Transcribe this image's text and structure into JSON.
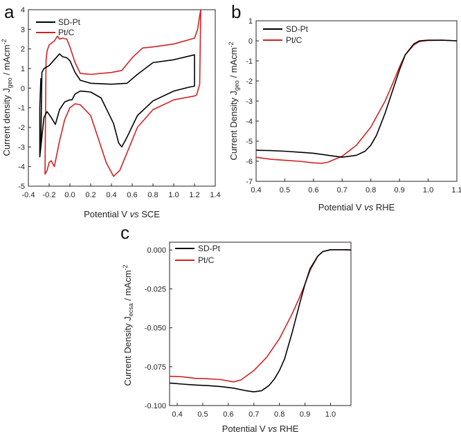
{
  "chart_data": [
    {
      "id": "a",
      "type": "line",
      "panel_label": "a",
      "xlabel_parts": [
        "Potential V ",
        "vs",
        " SCE"
      ],
      "ylabel_parts": [
        "Current density J",
        "geo",
        " / mAcm",
        "-2"
      ],
      "xlim": [
        -0.4,
        1.4
      ],
      "ylim": [
        -5,
        4
      ],
      "xticks": [
        -0.4,
        -0.2,
        0.0,
        0.2,
        0.4,
        0.6,
        0.8,
        1.0,
        1.2,
        1.4
      ],
      "xtick_labels": [
        "-0.4",
        "-0.2",
        "0.0",
        "0.2",
        "0.4",
        "0.6",
        "0.8",
        "1.0",
        "1.2",
        "1.4"
      ],
      "yticks": [
        -5,
        -4,
        -3,
        -2,
        -1,
        0,
        1,
        2,
        3,
        4
      ],
      "ytick_labels": [
        "-5",
        "-4",
        "-3",
        "-2",
        "-1",
        "0",
        "1",
        "2",
        "3",
        "4"
      ],
      "legend": "top-left",
      "series": [
        {
          "name": "SD-Pt",
          "color": "#000000",
          "x": [
            -0.28,
            -0.27,
            -0.25,
            -0.2,
            -0.15,
            -0.1,
            -0.07,
            -0.03,
            0.0,
            0.05,
            0.1,
            0.2,
            0.4,
            0.55,
            0.65,
            0.8,
            1.0,
            1.2,
            1.2,
            1.15,
            1.0,
            0.8,
            0.65,
            0.55,
            0.5,
            0.47,
            0.42,
            0.3,
            0.2,
            0.1,
            0.05,
            0.02,
            0.0,
            -0.05,
            -0.1,
            -0.14,
            -0.18,
            -0.22,
            -0.25,
            -0.27,
            -0.29,
            -0.29,
            -0.28
          ],
          "y": [
            -3.0,
            0.8,
            1.0,
            1.15,
            1.45,
            1.75,
            1.6,
            1.55,
            1.4,
            0.8,
            0.4,
            0.25,
            0.2,
            0.25,
            0.7,
            1.3,
            1.45,
            1.7,
            0.1,
            0.05,
            -0.15,
            -0.65,
            -1.4,
            -2.5,
            -3.0,
            -2.8,
            -1.8,
            -0.5,
            -0.2,
            -0.15,
            -0.3,
            -0.6,
            -0.6,
            -0.7,
            -1.1,
            -1.85,
            -1.5,
            -1.2,
            -1.5,
            -2.5,
            -3.5,
            -1.0,
            0.5
          ]
        },
        {
          "name": "Pt/C",
          "color": "#d42020",
          "x": [
            -0.24,
            -0.23,
            -0.22,
            -0.2,
            -0.15,
            -0.12,
            -0.1,
            -0.07,
            -0.03,
            0.0,
            0.05,
            0.1,
            0.2,
            0.4,
            0.5,
            0.6,
            0.7,
            0.8,
            1.0,
            1.2,
            1.23,
            1.25,
            1.26,
            1.25,
            1.22,
            1.2,
            1.0,
            0.8,
            0.65,
            0.55,
            0.48,
            0.42,
            0.35,
            0.2,
            0.1,
            0.05,
            0.0,
            -0.05,
            -0.1,
            -0.15,
            -0.18,
            -0.2,
            -0.22,
            -0.24,
            -0.24
          ],
          "y": [
            -4.4,
            1.4,
            1.9,
            2.2,
            2.4,
            2.65,
            2.5,
            2.55,
            2.5,
            2.1,
            1.3,
            0.75,
            0.7,
            0.8,
            0.9,
            1.55,
            2.05,
            2.1,
            2.25,
            2.55,
            3.0,
            3.7,
            4.0,
            0.2,
            -0.35,
            -0.4,
            -0.6,
            -1.1,
            -2.0,
            -3.3,
            -4.2,
            -4.5,
            -3.8,
            -1.4,
            -0.85,
            -0.8,
            -1.0,
            -1.6,
            -2.7,
            -4.0,
            -3.7,
            -3.8,
            -4.2,
            -4.4,
            -4.4
          ]
        }
      ]
    },
    {
      "id": "b",
      "type": "line",
      "panel_label": "b",
      "xlabel_parts": [
        "Potential V ",
        "vs",
        " RHE"
      ],
      "ylabel_parts": [
        "Current Density J",
        "geo",
        " / mAcm",
        "-2"
      ],
      "xlim": [
        0.4,
        1.1
      ],
      "ylim": [
        -7,
        1
      ],
      "xticks": [
        0.4,
        0.5,
        0.6,
        0.7,
        0.8,
        0.9,
        1.0,
        1.1
      ],
      "xtick_labels": [
        "0.4",
        "0.5",
        "0.6",
        "0.7",
        "0.8",
        "0.9",
        "1.0",
        "1.1"
      ],
      "yticks": [
        -7,
        -6,
        -5,
        -4,
        -3,
        -2,
        -1,
        0,
        1
      ],
      "ytick_labels": [
        "-7",
        "-6",
        "-5",
        "-4",
        "-3",
        "-2",
        "-1",
        "0",
        "1"
      ],
      "legend": "top-left",
      "series": [
        {
          "name": "SD-Pt",
          "color": "#000000",
          "x": [
            0.4,
            0.45,
            0.5,
            0.55,
            0.6,
            0.65,
            0.7,
            0.75,
            0.78,
            0.8,
            0.82,
            0.85,
            0.88,
            0.9,
            0.92,
            0.95,
            0.97,
            1.0,
            1.05,
            1.1
          ],
          "y": [
            -5.45,
            -5.47,
            -5.5,
            -5.55,
            -5.6,
            -5.7,
            -5.8,
            -5.7,
            -5.5,
            -5.2,
            -4.7,
            -3.6,
            -2.3,
            -1.45,
            -0.7,
            -0.15,
            0.0,
            0.03,
            0.03,
            0.0
          ]
        },
        {
          "name": "Pt/C",
          "color": "#d42020",
          "x": [
            0.4,
            0.45,
            0.5,
            0.55,
            0.6,
            0.63,
            0.65,
            0.7,
            0.75,
            0.8,
            0.85,
            0.88,
            0.9,
            0.92,
            0.95,
            0.97,
            1.0,
            1.05,
            1.1
          ],
          "y": [
            -5.8,
            -5.9,
            -5.95,
            -6.0,
            -6.08,
            -6.1,
            -6.05,
            -5.75,
            -5.2,
            -4.3,
            -3.0,
            -2.0,
            -1.3,
            -0.7,
            -0.2,
            -0.03,
            0.02,
            0.03,
            0.0
          ]
        }
      ]
    },
    {
      "id": "c",
      "type": "line",
      "panel_label": "c",
      "xlabel_parts": [
        "Potential V ",
        "vs",
        " RHE"
      ],
      "ylabel_parts": [
        "Current Density J",
        "ecsa",
        " / mAcm",
        "-2"
      ],
      "xlim": [
        0.37,
        1.08
      ],
      "ylim": [
        -0.1,
        0.005
      ],
      "xticks": [
        0.4,
        0.5,
        0.6,
        0.7,
        0.8,
        0.9,
        1.0
      ],
      "xtick_labels": [
        "0.4",
        "0.5",
        "0.6",
        "0.7",
        "0.8",
        "0.9",
        "1.0"
      ],
      "yticks": [
        -0.1,
        -0.075,
        -0.05,
        -0.025,
        0.0
      ],
      "ytick_labels": [
        "-0.100",
        "-0.075",
        "-0.050",
        "-0.025",
        "0.000"
      ],
      "legend": "top-left",
      "series": [
        {
          "name": "SD-Pt",
          "color": "#000000",
          "x": [
            0.37,
            0.42,
            0.47,
            0.52,
            0.57,
            0.62,
            0.67,
            0.7,
            0.73,
            0.76,
            0.78,
            0.8,
            0.82,
            0.85,
            0.88,
            0.9,
            0.92,
            0.95,
            0.97,
            1.0,
            1.05,
            1.08
          ],
          "y": [
            -0.0855,
            -0.0862,
            -0.0868,
            -0.0872,
            -0.0878,
            -0.0888,
            -0.0905,
            -0.0912,
            -0.0905,
            -0.087,
            -0.083,
            -0.0775,
            -0.07,
            -0.053,
            -0.034,
            -0.022,
            -0.012,
            -0.004,
            -0.001,
            0.0002,
            0.0002,
            0.0
          ]
        },
        {
          "name": "Pt/C",
          "color": "#d42020",
          "x": [
            0.37,
            0.42,
            0.47,
            0.52,
            0.57,
            0.62,
            0.65,
            0.7,
            0.75,
            0.8,
            0.85,
            0.88,
            0.9,
            0.92,
            0.95,
            0.97,
            1.0,
            1.05,
            1.08
          ],
          "y": [
            -0.0812,
            -0.0815,
            -0.0825,
            -0.0828,
            -0.0833,
            -0.0848,
            -0.0835,
            -0.0775,
            -0.069,
            -0.057,
            -0.041,
            -0.03,
            -0.022,
            -0.013,
            -0.004,
            -0.001,
            0.0002,
            0.0002,
            0.0
          ]
        }
      ]
    }
  ]
}
